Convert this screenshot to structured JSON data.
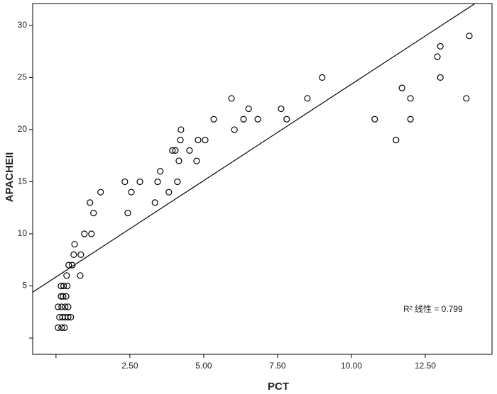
{
  "chart_data": {
    "type": "scatter",
    "x_label": "PCT",
    "y_label": "APACHEII",
    "annotation": "R² 线性 = 0.799",
    "fit_line": {
      "intercept": 5.86,
      "slope": 1.85
    },
    "color": "#000000",
    "xlim": [
      -0.79,
      14.76
    ],
    "ylim": [
      -1.56,
      32.1
    ],
    "xticks": [
      {
        "value": 0,
        "label": null
      },
      {
        "value": 2.5,
        "label": "2.50"
      },
      {
        "value": 5,
        "label": "5.00"
      },
      {
        "value": 7.5,
        "label": "7.50"
      },
      {
        "value": 10,
        "label": "10.00"
      },
      {
        "value": 12.5,
        "label": "12.50"
      }
    ],
    "yticks": [
      {
        "value": 0,
        "label": null
      },
      5,
      10,
      15,
      20,
      25,
      30
    ],
    "x": [
      0.07,
      0.19,
      0.29,
      0.12,
      0.22,
      0.31,
      0.41,
      0.5,
      0.07,
      0.19,
      0.31,
      0.41,
      0.17,
      0.24,
      0.34,
      0.17,
      0.26,
      0.38,
      0.36,
      0.43,
      0.55,
      0.6,
      0.63,
      0.84,
      0.82,
      0.96,
      1.2,
      1.15,
      1.27,
      1.51,
      2.33,
      2.43,
      2.55,
      2.84,
      3.35,
      3.44,
      3.53,
      3.82,
      3.94,
      4.04,
      4.11,
      4.16,
      4.21,
      4.23,
      4.52,
      4.76,
      4.81,
      5.05,
      5.34,
      5.94,
      6.04,
      6.35,
      6.52,
      6.83,
      7.62,
      7.81,
      8.51,
      9.01,
      10.79,
      11.51,
      11.71,
      12.0,
      12.0,
      12.91,
      13.01,
      13.01,
      13.89,
      13.99
    ],
    "y": [
      1,
      1,
      1,
      2,
      2,
      2,
      2,
      2,
      3,
      3,
      3,
      3,
      4,
      4,
      4,
      5,
      5,
      5,
      6,
      7,
      7,
      8,
      9,
      8,
      6,
      10,
      10,
      13,
      12,
      14,
      15,
      12,
      14,
      15,
      13,
      15,
      16,
      14,
      18,
      18,
      15,
      17,
      19,
      20,
      18,
      17,
      19,
      19,
      21,
      23,
      20,
      21,
      22,
      21,
      22,
      21,
      23,
      25,
      21,
      19,
      24,
      23,
      21,
      27,
      28,
      25,
      23,
      29
    ]
  }
}
